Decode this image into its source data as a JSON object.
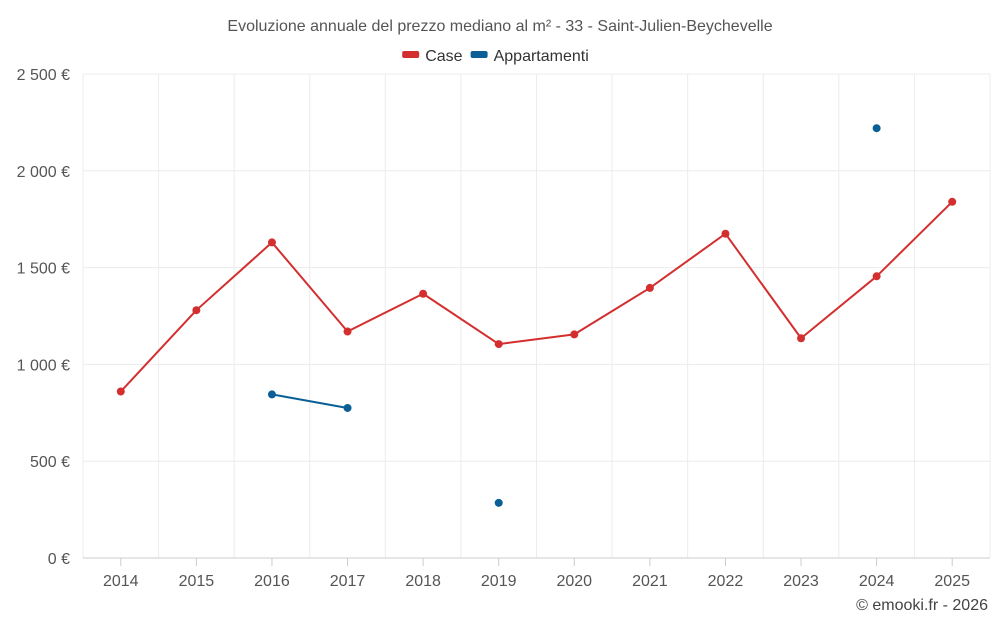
{
  "chart_data": {
    "type": "line",
    "title": "Evoluzione annuale del prezzo mediano al m² - 33 - Saint-Julien-Beychevelle",
    "categories": [
      "2014",
      "2015",
      "2016",
      "2017",
      "2018",
      "2019",
      "2020",
      "2021",
      "2022",
      "2023",
      "2024",
      "2025"
    ],
    "series": [
      {
        "name": "Case",
        "color": "#d32f2f",
        "values": [
          860,
          1280,
          1630,
          1170,
          1365,
          1105,
          1155,
          1395,
          1675,
          1135,
          1455,
          1840
        ]
      },
      {
        "name": "Appartamenti",
        "color": "#0b5f97",
        "values": [
          null,
          null,
          845,
          775,
          null,
          285,
          null,
          null,
          null,
          null,
          2220,
          null
        ]
      }
    ],
    "ylim": [
      0,
      2500
    ],
    "yticks": [
      {
        "value": 0,
        "label": "0 €"
      },
      {
        "value": 500,
        "label": "500 €"
      },
      {
        "value": 1000,
        "label": "1 000 €"
      },
      {
        "value": 1500,
        "label": "1 500 €"
      },
      {
        "value": 2000,
        "label": "2 000 €"
      },
      {
        "value": 2500,
        "label": "2 500 €"
      }
    ],
    "grid": true,
    "legend": "top-center",
    "credit": "© emooki.fr - 2026"
  }
}
